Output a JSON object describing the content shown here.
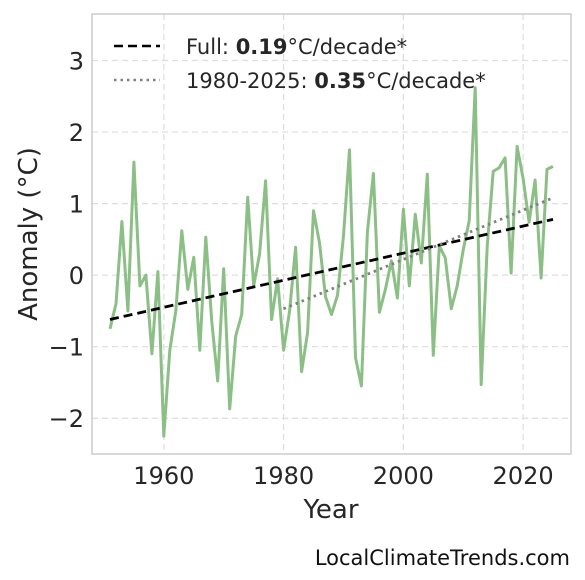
{
  "chart_data": {
    "type": "line",
    "title": "",
    "xlabel": "Year",
    "ylabel": "Anomaly (°C)",
    "xlim": [
      1948,
      2028
    ],
    "ylim": [
      -2.5,
      3.65
    ],
    "xticks": [
      1960,
      1980,
      2000,
      2020
    ],
    "yticks": [
      -2,
      -1,
      0,
      1,
      2,
      3
    ],
    "ytick_labels": [
      "−2",
      "−1",
      "0",
      "1",
      "2",
      "3"
    ],
    "grid": true,
    "legend_position": "top-left",
    "series": [
      {
        "x": [
          1951,
          1952,
          1953,
          1954,
          1955,
          1956,
          1957,
          1958,
          1959,
          1960,
          1961,
          1962,
          1963,
          1964,
          1965,
          1966,
          1967,
          1968,
          1969,
          1970,
          1971,
          1972,
          1973,
          1974,
          1975,
          1976,
          1977,
          1978,
          1979,
          1980,
          1981,
          1982,
          1983,
          1984,
          1985,
          1986,
          1987,
          1988,
          1989,
          1990,
          1991,
          1992,
          1993,
          1994,
          1995,
          1996,
          1997,
          1998,
          1999,
          2000,
          2001,
          2002,
          2003,
          2004,
          2005,
          2006,
          2007,
          2008,
          2009,
          2010,
          2011,
          2012,
          2013,
          2014,
          2015,
          2016,
          2017,
          2018,
          2019,
          2020,
          2021,
          2022,
          2023,
          2024,
          2025
        ],
        "values": [
          -0.75,
          -0.4,
          0.75,
          -0.5,
          1.58,
          -0.15,
          0.0,
          -1.1,
          0.05,
          -2.25,
          -1.05,
          -0.5,
          0.62,
          -0.2,
          0.25,
          -1.05,
          0.53,
          -0.65,
          -1.48,
          0.09,
          -1.87,
          -0.85,
          -0.55,
          1.09,
          -0.15,
          0.3,
          1.32,
          -0.62,
          -0.05,
          -1.05,
          -0.5,
          0.39,
          -1.35,
          -0.8,
          0.9,
          0.45,
          -0.3,
          -0.55,
          -0.28,
          0.55,
          1.75,
          -1.15,
          -1.55,
          0.6,
          1.42,
          -0.52,
          -0.2,
          0.2,
          -0.32,
          0.92,
          -0.15,
          0.85,
          0.17,
          1.41,
          -1.12,
          0.41,
          0.24,
          -0.47,
          -0.15,
          0.35,
          0.76,
          2.62,
          -1.53,
          0.4,
          1.45,
          1.5,
          1.64,
          0.03,
          1.8,
          1.35,
          0.74,
          1.33,
          -0.04,
          1.48,
          1.52
        ],
        "color": "#8cbf86"
      }
    ],
    "trend_lines": [
      {
        "name": "Full",
        "rate": "0.19",
        "suffix": "°C/decade*",
        "x": [
          1951,
          2025
        ],
        "y": [
          -0.62,
          0.78
        ],
        "color": "#000000",
        "style": "dashed"
      },
      {
        "name": "1980-2025",
        "rate": "0.35",
        "suffix": "°C/decade*",
        "x": [
          1980,
          2025
        ],
        "y": [
          -0.47,
          1.08
        ],
        "color": "#808080",
        "style": "dotted"
      }
    ],
    "credit": "LocalClimateTrends.com"
  }
}
